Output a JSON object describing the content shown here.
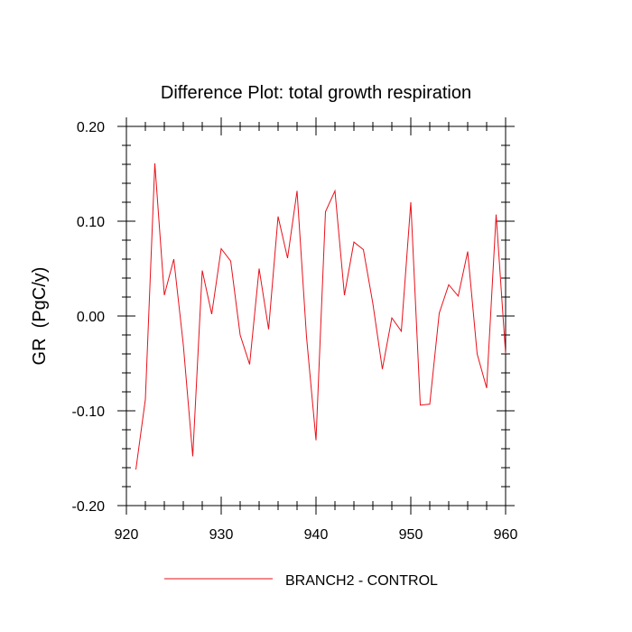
{
  "chart_data": {
    "type": "line",
    "title": "Difference Plot: total growth respiration",
    "xlabel": "",
    "ylabel": "GR  (PgC/y)",
    "xlim": [
      920,
      960
    ],
    "ylim": [
      -0.2,
      0.2
    ],
    "x_ticks": [
      920,
      930,
      940,
      950,
      960
    ],
    "x_tick_labels": [
      "920",
      "930",
      "940",
      "950",
      "960"
    ],
    "y_ticks": [
      -0.2,
      -0.1,
      0.0,
      0.1,
      0.2
    ],
    "y_tick_labels": [
      "-0.20",
      "-0.10",
      "0.00",
      "0.10",
      "0.20"
    ],
    "grid": false,
    "legend_position": "bottom-center",
    "series": [
      {
        "name": "BRANCH2 - CONTROL",
        "color": "#e8101a",
        "x": [
          921,
          922,
          923,
          924,
          925,
          926,
          927,
          928,
          929,
          930,
          931,
          932,
          933,
          934,
          935,
          936,
          937,
          938,
          939,
          940,
          941,
          942,
          943,
          944,
          945,
          946,
          947,
          948,
          949,
          950,
          951,
          952,
          953,
          954,
          955,
          956,
          957,
          958,
          959,
          960
        ],
        "y": [
          -0.162,
          -0.088,
          0.161,
          0.022,
          0.06,
          -0.03,
          -0.148,
          0.048,
          0.002,
          0.071,
          0.058,
          -0.02,
          -0.051,
          0.05,
          -0.014,
          0.105,
          0.061,
          0.132,
          -0.022,
          -0.131,
          0.11,
          0.132,
          0.022,
          0.078,
          0.07,
          0.013,
          -0.056,
          -0.002,
          -0.016,
          0.12,
          -0.094,
          -0.093,
          0.003,
          0.033,
          0.021,
          0.068,
          -0.04,
          -0.076,
          0.107,
          -0.04
        ]
      }
    ]
  }
}
